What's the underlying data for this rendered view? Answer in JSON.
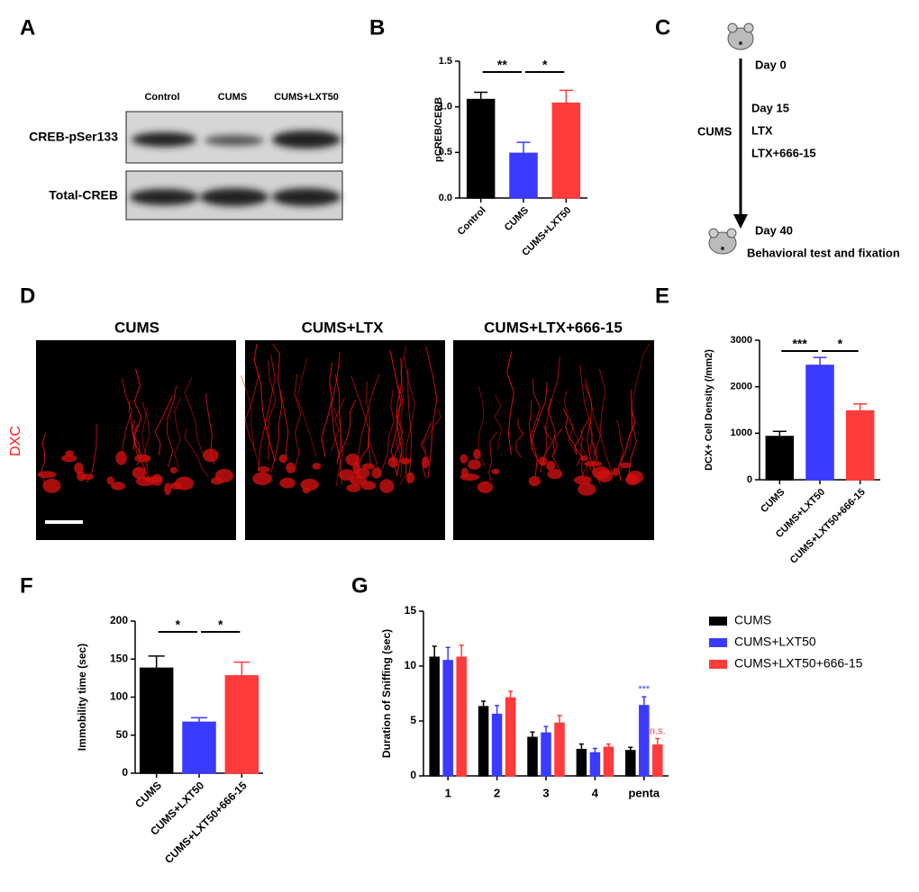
{
  "panels": [
    "A",
    "B",
    "C",
    "D",
    "E",
    "F",
    "G"
  ],
  "blot": {
    "columns": [
      "Control",
      "CUMS",
      "CUMS+LXT50"
    ],
    "rows": [
      "CREB-pSer133",
      "Total-CREB"
    ]
  },
  "timeline": {
    "day0": "Day 0",
    "phase": "CUMS",
    "day15": "Day 15",
    "treatments": [
      "LTX",
      "LTX+666-15"
    ],
    "day40": "Day 40",
    "end": "Behavioral test and fixation"
  },
  "micrographs": {
    "titles": [
      "CUMS",
      "CUMS+LTX",
      "CUMS+LTX+666-15"
    ],
    "stain": "DXC"
  },
  "chart_data": [
    {
      "type": "bar",
      "ylabel": "pCREB/CERB",
      "categories": [
        "Control",
        "CUMS",
        "CUMS+LXT50"
      ],
      "values": [
        1.08,
        0.49,
        1.04
      ],
      "errors": [
        0.08,
        0.12,
        0.14
      ],
      "colors": [
        "#000000",
        "#3b3bff",
        "#ff3b3b"
      ],
      "ylim": [
        0,
        1.5
      ],
      "yticks": [
        {
          "value": 0,
          "label": "0.0"
        },
        0.5,
        {
          "value": 1,
          "label": "1.0"
        },
        1.5
      ],
      "annotations": [
        "**",
        "*"
      ]
    },
    {
      "type": "bar",
      "ylabel": "DCX+ Cell Density (/mm2)",
      "categories": [
        "CUMS",
        "CUMS+LXT50",
        "CUMS+LXT50+666-15"
      ],
      "values": [
        930,
        2460,
        1480
      ],
      "errors": [
        110,
        170,
        150
      ],
      "colors": [
        "#000000",
        "#3b3bff",
        "#ff3b3b"
      ],
      "ylim": [
        0,
        3000
      ],
      "yticks": [
        0,
        1000,
        2000,
        3000
      ],
      "annotations": [
        "***",
        "*"
      ]
    },
    {
      "type": "bar",
      "ylabel": "Immobility time (sec)",
      "categories": [
        "CUMS",
        "CUMS+LXT50",
        "CUMS+LXT50+666-15"
      ],
      "values": [
        138,
        67,
        128
      ],
      "errors": [
        16,
        6,
        18
      ],
      "colors": [
        "#000000",
        "#3b3bff",
        "#ff3b3b"
      ],
      "ylim": [
        0,
        200
      ],
      "yticks": [
        0,
        50,
        100,
        150,
        200
      ],
      "annotations": [
        "*",
        "*"
      ]
    },
    {
      "type": "grouped-bar",
      "ylabel": "Duration of Sniffing (sec)",
      "categories": [
        "1",
        "2",
        "3",
        "4",
        "penta"
      ],
      "series": [
        {
          "name": "CUMS",
          "color": "#000000",
          "values": [
            10.8,
            6.3,
            3.5,
            2.4,
            2.3
          ],
          "errors": [
            1.0,
            0.5,
            0.5,
            0.5,
            0.3
          ]
        },
        {
          "name": "CUMS+LXT50",
          "color": "#3b3bff",
          "values": [
            10.5,
            5.6,
            3.9,
            2.1,
            6.4
          ],
          "errors": [
            1.2,
            0.8,
            0.6,
            0.4,
            0.8
          ]
        },
        {
          "name": "CUMS+LXT50+666-15",
          "color": "#ff3b3b",
          "values": [
            10.8,
            7.1,
            4.8,
            2.6,
            2.8
          ],
          "errors": [
            1.1,
            0.6,
            0.7,
            0.3,
            0.6
          ]
        }
      ],
      "ylim": [
        0,
        15
      ],
      "yticks": [
        0,
        5,
        10,
        15
      ],
      "annotations": [
        "***",
        "n.s."
      ],
      "legend": "right"
    }
  ]
}
